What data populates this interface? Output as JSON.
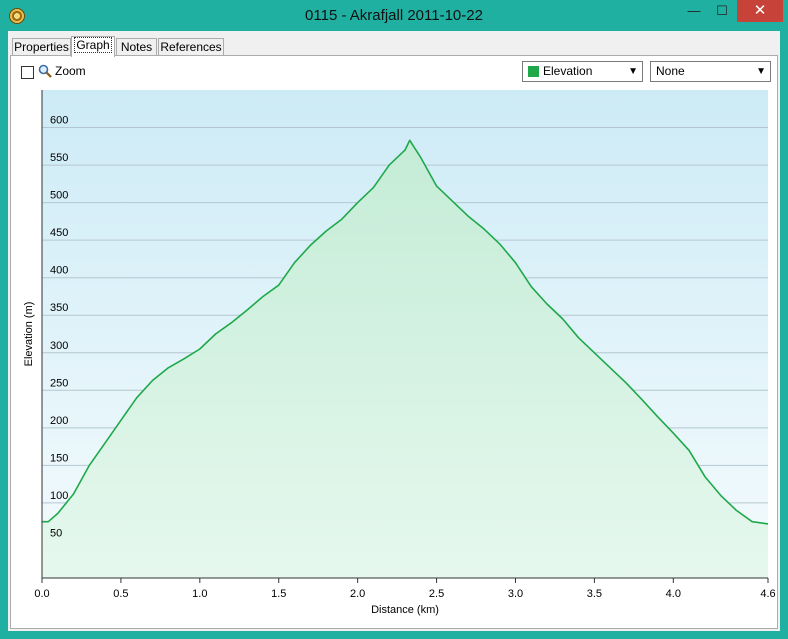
{
  "window": {
    "title": "0115 - Akrafjall 2011-10-22",
    "minimize_glyph": "—",
    "maximize_glyph": "☐",
    "close_glyph": "✕",
    "icon": "gps-app-icon"
  },
  "tabs": [
    {
      "label": "Properties",
      "active": false
    },
    {
      "label": "Graph",
      "active": true
    },
    {
      "label": "Notes",
      "active": false
    },
    {
      "label": "References",
      "active": false
    }
  ],
  "toolbar": {
    "zoom_label": "Zoom",
    "zoom_checked": false,
    "zoom_icon": "magnifier-icon",
    "y_select": {
      "value": "Elevation",
      "color": "#1fa84a"
    },
    "y2_select": {
      "value": "None"
    }
  },
  "chart_data": {
    "type": "area",
    "xlabel": "Distance  (km)",
    "ylabel": "Elevation (m)",
    "xlim": [
      0,
      4.6
    ],
    "ylim": [
      0,
      650
    ],
    "x_ticks": [
      "0.0",
      "0.5",
      "1.0",
      "1.5",
      "2.0",
      "2.5",
      "3.0",
      "3.5",
      "4.0",
      "4.6"
    ],
    "y_ticks": [
      "50",
      "100",
      "150",
      "200",
      "250",
      "300",
      "350",
      "400",
      "450",
      "500",
      "550",
      "600"
    ],
    "grid": "horizontal",
    "line_color": "#1fa84a",
    "series": [
      {
        "x": [
          0.0,
          0.04,
          0.1,
          0.2,
          0.3,
          0.4,
          0.5,
          0.6,
          0.7,
          0.8,
          0.9,
          1.0,
          1.1,
          1.2,
          1.3,
          1.4,
          1.5,
          1.6,
          1.7,
          1.8,
          1.9,
          2.0,
          2.1,
          2.2,
          2.3,
          2.33,
          2.4,
          2.5,
          2.6,
          2.7,
          2.8,
          2.9,
          3.0,
          3.1,
          3.2,
          3.3,
          3.4,
          3.5,
          3.6,
          3.7,
          3.8,
          3.9,
          4.0,
          4.1,
          4.2,
          4.3,
          4.4,
          4.5,
          4.6
        ],
        "values": [
          75,
          75,
          86,
          112,
          150,
          180,
          210,
          240,
          263,
          280,
          292,
          305,
          325,
          340,
          357,
          375,
          390,
          420,
          443,
          462,
          478,
          500,
          520,
          550,
          570,
          583,
          560,
          522,
          502,
          482,
          465,
          445,
          420,
          388,
          365,
          345,
          320,
          300,
          280,
          260,
          238,
          215,
          193,
          170,
          135,
          110,
          90,
          75,
          72
        ]
      }
    ]
  }
}
